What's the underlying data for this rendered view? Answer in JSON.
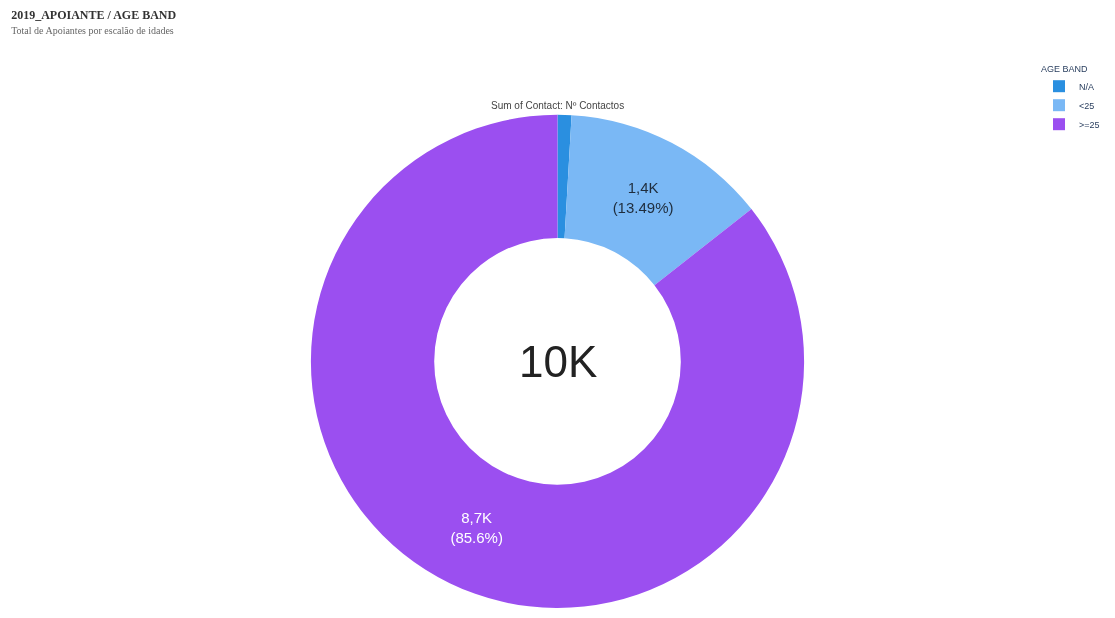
{
  "chart_data": {
    "type": "donut",
    "title": "2019_APOIANTE / AGE BAND",
    "subtitle": "Total de Apoiantes por escalão de idades",
    "annotations": [
      "Sum of Contact: Nº Contactos",
      "10K"
    ],
    "legend_title": "AGE BAND",
    "legend": "top right",
    "categories": [
      "N/A",
      "<25",
      ">=25"
    ],
    "values": [
      0.91,
      13.49,
      85.6
    ],
    "value_labels": [
      null,
      "1,4K\n(13.49%)",
      "8,7K\n(85.6%)"
    ],
    "colors": [
      "#2a8fe0",
      "#7ab8f5",
      "#9b4ff0"
    ]
  }
}
